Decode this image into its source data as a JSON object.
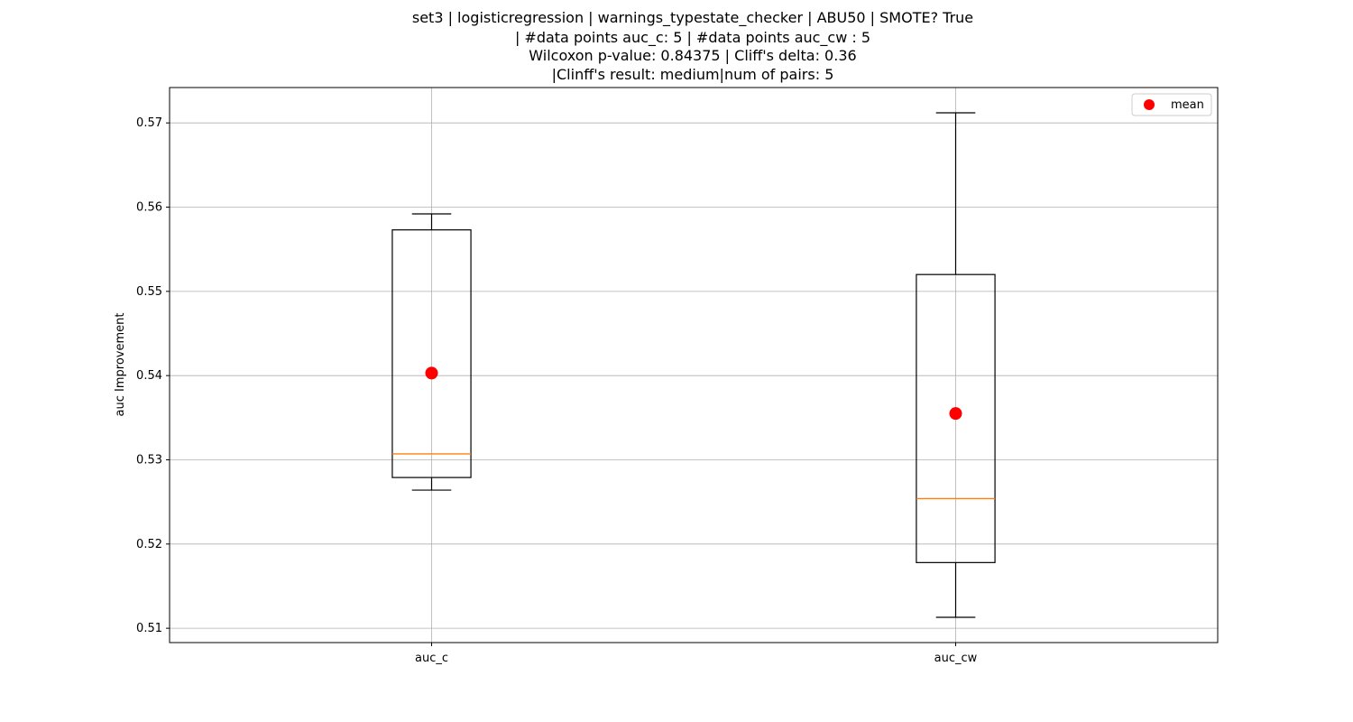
{
  "chart_data": {
    "type": "boxplot",
    "title_lines": [
      "set3 | logisticregression | warnings_typestate_checker | ABU50 | SMOTE? True",
      "| #data points auc_c: 5 | #data points auc_cw : 5",
      "Wilcoxon p-value: 0.84375 | Cliff's delta: 0.36",
      "|Clinff's result: medium|num of pairs: 5"
    ],
    "xlabel": "",
    "ylabel": "auc Improvement",
    "ylim": [
      0.5083,
      0.5742
    ],
    "yticks": [
      0.51,
      0.52,
      0.53,
      0.54,
      0.55,
      0.56,
      0.57
    ],
    "ytick_labels": [
      "0.51",
      "0.52",
      "0.53",
      "0.54",
      "0.55",
      "0.56",
      "0.57"
    ],
    "grid": true,
    "legend": {
      "placement": "top-right",
      "entries": [
        "mean"
      ]
    },
    "colors": {
      "box": "#000000",
      "median": "#ff7f0e",
      "mean": "#ff0000",
      "grid": "#b0b0b0"
    },
    "boxes": [
      {
        "name": "auc_c",
        "whisker_low": 0.5264,
        "q1": 0.5279,
        "median": 0.5307,
        "q3": 0.5573,
        "whisker_high": 0.5592,
        "mean": 0.5403
      },
      {
        "name": "auc_cw",
        "whisker_low": 0.5113,
        "q1": 0.5178,
        "median": 0.5254,
        "q3": 0.552,
        "whisker_high": 0.5712,
        "mean": 0.5355
      }
    ]
  }
}
